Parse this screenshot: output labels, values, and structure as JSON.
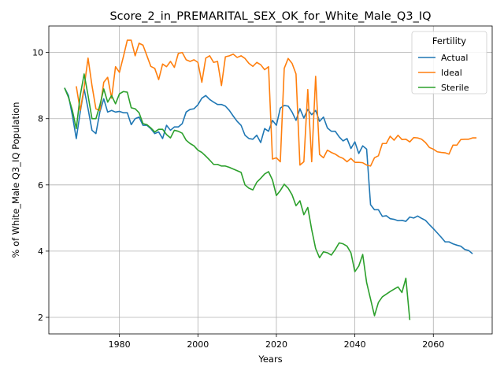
{
  "chart_data": {
    "type": "line",
    "title": "Score_2_in_PREMARITAL_SEX_OK_for_White_Male_Q3_IQ",
    "xlabel": "Years",
    "ylabel": "% of White_Male Q3_IQ Population",
    "xlim": [
      1962,
      2075
    ],
    "ylim": [
      1.5,
      10.8
    ],
    "xticks": [
      1980,
      2000,
      2020,
      2040,
      2060
    ],
    "yticks": [
      2,
      4,
      6,
      8,
      10
    ],
    "grid": true,
    "legend": {
      "title": "Fertility",
      "position": "top-right"
    },
    "series": [
      {
        "name": "Actual",
        "color": "#1f77b4",
        "points": [
          [
            1966,
            8.93
          ],
          [
            1967,
            8.7
          ],
          [
            1968,
            8.1
          ],
          [
            1969,
            7.4
          ],
          [
            1970,
            8.2
          ],
          [
            1971,
            8.9
          ],
          [
            1972,
            8.3
          ],
          [
            1973,
            7.65
          ],
          [
            1974,
            7.55
          ],
          [
            1975,
            8.2
          ],
          [
            1976,
            8.6
          ],
          [
            1977,
            8.2
          ],
          [
            1978,
            8.25
          ],
          [
            1979,
            8.2
          ],
          [
            1980,
            8.22
          ],
          [
            1981,
            8.18
          ],
          [
            1982,
            8.18
          ],
          [
            1983,
            7.82
          ],
          [
            1984,
            8.0
          ],
          [
            1985,
            8.05
          ],
          [
            1986,
            7.8
          ],
          [
            1987,
            7.8
          ],
          [
            1988,
            7.7
          ],
          [
            1989,
            7.55
          ],
          [
            1990,
            7.6
          ],
          [
            1991,
            7.4
          ],
          [
            1992,
            7.8
          ],
          [
            1993,
            7.65
          ],
          [
            1994,
            7.75
          ],
          [
            1995,
            7.75
          ],
          [
            1996,
            7.85
          ],
          [
            1997,
            8.2
          ],
          [
            1998,
            8.28
          ],
          [
            1999,
            8.3
          ],
          [
            2000,
            8.42
          ],
          [
            2001,
            8.62
          ],
          [
            2002,
            8.7
          ],
          [
            2003,
            8.58
          ],
          [
            2004,
            8.5
          ],
          [
            2005,
            8.43
          ],
          [
            2006,
            8.43
          ],
          [
            2007,
            8.38
          ],
          [
            2008,
            8.25
          ],
          [
            2009,
            8.08
          ],
          [
            2010,
            7.92
          ],
          [
            2011,
            7.8
          ],
          [
            2012,
            7.5
          ],
          [
            2013,
            7.4
          ],
          [
            2014,
            7.38
          ],
          [
            2015,
            7.5
          ],
          [
            2016,
            7.28
          ],
          [
            2017,
            7.7
          ],
          [
            2018,
            7.62
          ],
          [
            2019,
            7.95
          ],
          [
            2020,
            7.8
          ],
          [
            2021,
            8.32
          ],
          [
            2022,
            8.4
          ],
          [
            2023,
            8.38
          ],
          [
            2024,
            8.2
          ],
          [
            2025,
            7.95
          ],
          [
            2026,
            8.3
          ],
          [
            2027,
            8.02
          ],
          [
            2028,
            8.28
          ],
          [
            2029,
            8.12
          ],
          [
            2030,
            8.25
          ],
          [
            2031,
            7.92
          ],
          [
            2032,
            8.05
          ],
          [
            2033,
            7.72
          ],
          [
            2034,
            7.62
          ],
          [
            2035,
            7.62
          ],
          [
            2036,
            7.45
          ],
          [
            2037,
            7.33
          ],
          [
            2038,
            7.4
          ],
          [
            2039,
            7.1
          ],
          [
            2040,
            7.3
          ],
          [
            2041,
            6.95
          ],
          [
            2042,
            7.18
          ],
          [
            2043,
            7.08
          ],
          [
            2044,
            5.4
          ],
          [
            2045,
            5.25
          ],
          [
            2046,
            5.25
          ],
          [
            2047,
            5.05
          ],
          [
            2048,
            5.07
          ],
          [
            2049,
            4.98
          ],
          [
            2050,
            4.96
          ],
          [
            2051,
            4.92
          ],
          [
            2052,
            4.93
          ],
          [
            2053,
            4.9
          ],
          [
            2054,
            5.03
          ],
          [
            2055,
            5.0
          ],
          [
            2056,
            5.06
          ],
          [
            2057,
            4.99
          ],
          [
            2058,
            4.93
          ],
          [
            2059,
            4.8
          ],
          [
            2060,
            4.68
          ],
          [
            2061,
            4.55
          ],
          [
            2062,
            4.42
          ],
          [
            2063,
            4.28
          ],
          [
            2064,
            4.28
          ],
          [
            2065,
            4.22
          ],
          [
            2066,
            4.18
          ],
          [
            2067,
            4.15
          ],
          [
            2068,
            4.05
          ],
          [
            2069,
            4.02
          ],
          [
            2070,
            3.92
          ]
        ]
      },
      {
        "name": "Ideal",
        "color": "#ff7f0e",
        "points": [
          [
            1969,
            8.98
          ],
          [
            1970,
            8.25
          ],
          [
            1971,
            8.95
          ],
          [
            1972,
            9.83
          ],
          [
            1973,
            9.0
          ],
          [
            1974,
            8.3
          ],
          [
            1975,
            8.25
          ],
          [
            1976,
            9.1
          ],
          [
            1977,
            9.25
          ],
          [
            1978,
            8.62
          ],
          [
            1979,
            9.57
          ],
          [
            1980,
            9.4
          ],
          [
            1981,
            9.87
          ],
          [
            1982,
            10.37
          ],
          [
            1983,
            10.37
          ],
          [
            1984,
            9.9
          ],
          [
            1985,
            10.28
          ],
          [
            1986,
            10.22
          ],
          [
            1987,
            9.9
          ],
          [
            1988,
            9.58
          ],
          [
            1989,
            9.52
          ],
          [
            1990,
            9.18
          ],
          [
            1991,
            9.65
          ],
          [
            1992,
            9.57
          ],
          [
            1993,
            9.73
          ],
          [
            1994,
            9.55
          ],
          [
            1995,
            9.97
          ],
          [
            1996,
            10.0
          ],
          [
            1997,
            9.78
          ],
          [
            1998,
            9.73
          ],
          [
            1999,
            9.78
          ],
          [
            2000,
            9.7
          ],
          [
            2001,
            9.1
          ],
          [
            2002,
            9.83
          ],
          [
            2003,
            9.9
          ],
          [
            2004,
            9.7
          ],
          [
            2005,
            9.73
          ],
          [
            2006,
            9.0
          ],
          [
            2007,
            9.87
          ],
          [
            2008,
            9.9
          ],
          [
            2009,
            9.95
          ],
          [
            2010,
            9.85
          ],
          [
            2011,
            9.9
          ],
          [
            2012,
            9.82
          ],
          [
            2013,
            9.67
          ],
          [
            2014,
            9.58
          ],
          [
            2015,
            9.7
          ],
          [
            2016,
            9.63
          ],
          [
            2017,
            9.48
          ],
          [
            2018,
            9.57
          ],
          [
            2019,
            6.78
          ],
          [
            2020,
            6.82
          ],
          [
            2021,
            6.7
          ],
          [
            2022,
            9.52
          ],
          [
            2023,
            9.82
          ],
          [
            2024,
            9.67
          ],
          [
            2025,
            9.35
          ],
          [
            2026,
            6.6
          ],
          [
            2027,
            6.7
          ],
          [
            2028,
            8.88
          ],
          [
            2029,
            6.7
          ],
          [
            2030,
            9.28
          ],
          [
            2031,
            6.92
          ],
          [
            2032,
            6.82
          ],
          [
            2033,
            7.05
          ],
          [
            2034,
            6.98
          ],
          [
            2035,
            6.93
          ],
          [
            2036,
            6.85
          ],
          [
            2037,
            6.8
          ],
          [
            2038,
            6.7
          ],
          [
            2039,
            6.8
          ],
          [
            2040,
            6.68
          ],
          [
            2041,
            6.68
          ],
          [
            2042,
            6.67
          ],
          [
            2043,
            6.6
          ],
          [
            2044,
            6.57
          ],
          [
            2045,
            6.82
          ],
          [
            2046,
            6.88
          ],
          [
            2047,
            7.25
          ],
          [
            2048,
            7.25
          ],
          [
            2049,
            7.47
          ],
          [
            2050,
            7.35
          ],
          [
            2051,
            7.5
          ],
          [
            2052,
            7.37
          ],
          [
            2053,
            7.38
          ],
          [
            2054,
            7.3
          ],
          [
            2055,
            7.43
          ],
          [
            2056,
            7.42
          ],
          [
            2057,
            7.38
          ],
          [
            2058,
            7.28
          ],
          [
            2059,
            7.13
          ],
          [
            2060,
            7.08
          ],
          [
            2061,
            7.0
          ],
          [
            2062,
            6.98
          ],
          [
            2063,
            6.97
          ],
          [
            2064,
            6.93
          ],
          [
            2065,
            7.2
          ],
          [
            2066,
            7.2
          ],
          [
            2067,
            7.37
          ],
          [
            2068,
            7.38
          ],
          [
            2069,
            7.38
          ],
          [
            2070,
            7.42
          ],
          [
            2071,
            7.42
          ]
        ]
      },
      {
        "name": "Sterile",
        "color": "#2ca02c",
        "points": [
          [
            1966,
            8.93
          ],
          [
            1967,
            8.65
          ],
          [
            1968,
            8.25
          ],
          [
            1969,
            7.7
          ],
          [
            1970,
            8.7
          ],
          [
            1971,
            9.35
          ],
          [
            1972,
            8.7
          ],
          [
            1973,
            8.0
          ],
          [
            1974,
            8.0
          ],
          [
            1975,
            8.4
          ],
          [
            1976,
            8.9
          ],
          [
            1977,
            8.5
          ],
          [
            1978,
            8.7
          ],
          [
            1979,
            8.45
          ],
          [
            1980,
            8.75
          ],
          [
            1981,
            8.82
          ],
          [
            1982,
            8.8
          ],
          [
            1983,
            8.33
          ],
          [
            1984,
            8.3
          ],
          [
            1985,
            8.18
          ],
          [
            1986,
            7.85
          ],
          [
            1987,
            7.82
          ],
          [
            1988,
            7.72
          ],
          [
            1989,
            7.6
          ],
          [
            1990,
            7.68
          ],
          [
            1991,
            7.68
          ],
          [
            1992,
            7.52
          ],
          [
            1993,
            7.42
          ],
          [
            1994,
            7.65
          ],
          [
            1995,
            7.62
          ],
          [
            1996,
            7.56
          ],
          [
            1997,
            7.35
          ],
          [
            1998,
            7.25
          ],
          [
            1999,
            7.18
          ],
          [
            2000,
            7.05
          ],
          [
            2001,
            6.98
          ],
          [
            2002,
            6.87
          ],
          [
            2003,
            6.75
          ],
          [
            2004,
            6.62
          ],
          [
            2005,
            6.62
          ],
          [
            2006,
            6.57
          ],
          [
            2007,
            6.57
          ],
          [
            2008,
            6.53
          ],
          [
            2009,
            6.48
          ],
          [
            2010,
            6.43
          ],
          [
            2011,
            6.38
          ],
          [
            2012,
            6.0
          ],
          [
            2013,
            5.9
          ],
          [
            2014,
            5.85
          ],
          [
            2015,
            6.08
          ],
          [
            2016,
            6.2
          ],
          [
            2017,
            6.33
          ],
          [
            2018,
            6.4
          ],
          [
            2019,
            6.15
          ],
          [
            2020,
            5.68
          ],
          [
            2021,
            5.83
          ],
          [
            2022,
            6.02
          ],
          [
            2023,
            5.9
          ],
          [
            2024,
            5.7
          ],
          [
            2025,
            5.37
          ],
          [
            2026,
            5.52
          ],
          [
            2027,
            5.1
          ],
          [
            2028,
            5.32
          ],
          [
            2029,
            4.65
          ],
          [
            2030,
            4.08
          ],
          [
            2031,
            3.8
          ],
          [
            2032,
            3.98
          ],
          [
            2033,
            3.95
          ],
          [
            2034,
            3.88
          ],
          [
            2035,
            4.05
          ],
          [
            2036,
            4.25
          ],
          [
            2037,
            4.22
          ],
          [
            2038,
            4.15
          ],
          [
            2039,
            3.95
          ],
          [
            2040,
            3.38
          ],
          [
            2041,
            3.55
          ],
          [
            2042,
            3.9
          ],
          [
            2043,
            3.05
          ],
          [
            2044,
            2.55
          ],
          [
            2045,
            2.05
          ],
          [
            2046,
            2.45
          ],
          [
            2047,
            2.62
          ],
          [
            2048,
            2.7
          ],
          [
            2049,
            2.78
          ],
          [
            2050,
            2.85
          ],
          [
            2051,
            2.92
          ],
          [
            2052,
            2.75
          ],
          [
            2053,
            3.18
          ],
          [
            2054,
            1.92
          ]
        ]
      }
    ]
  }
}
